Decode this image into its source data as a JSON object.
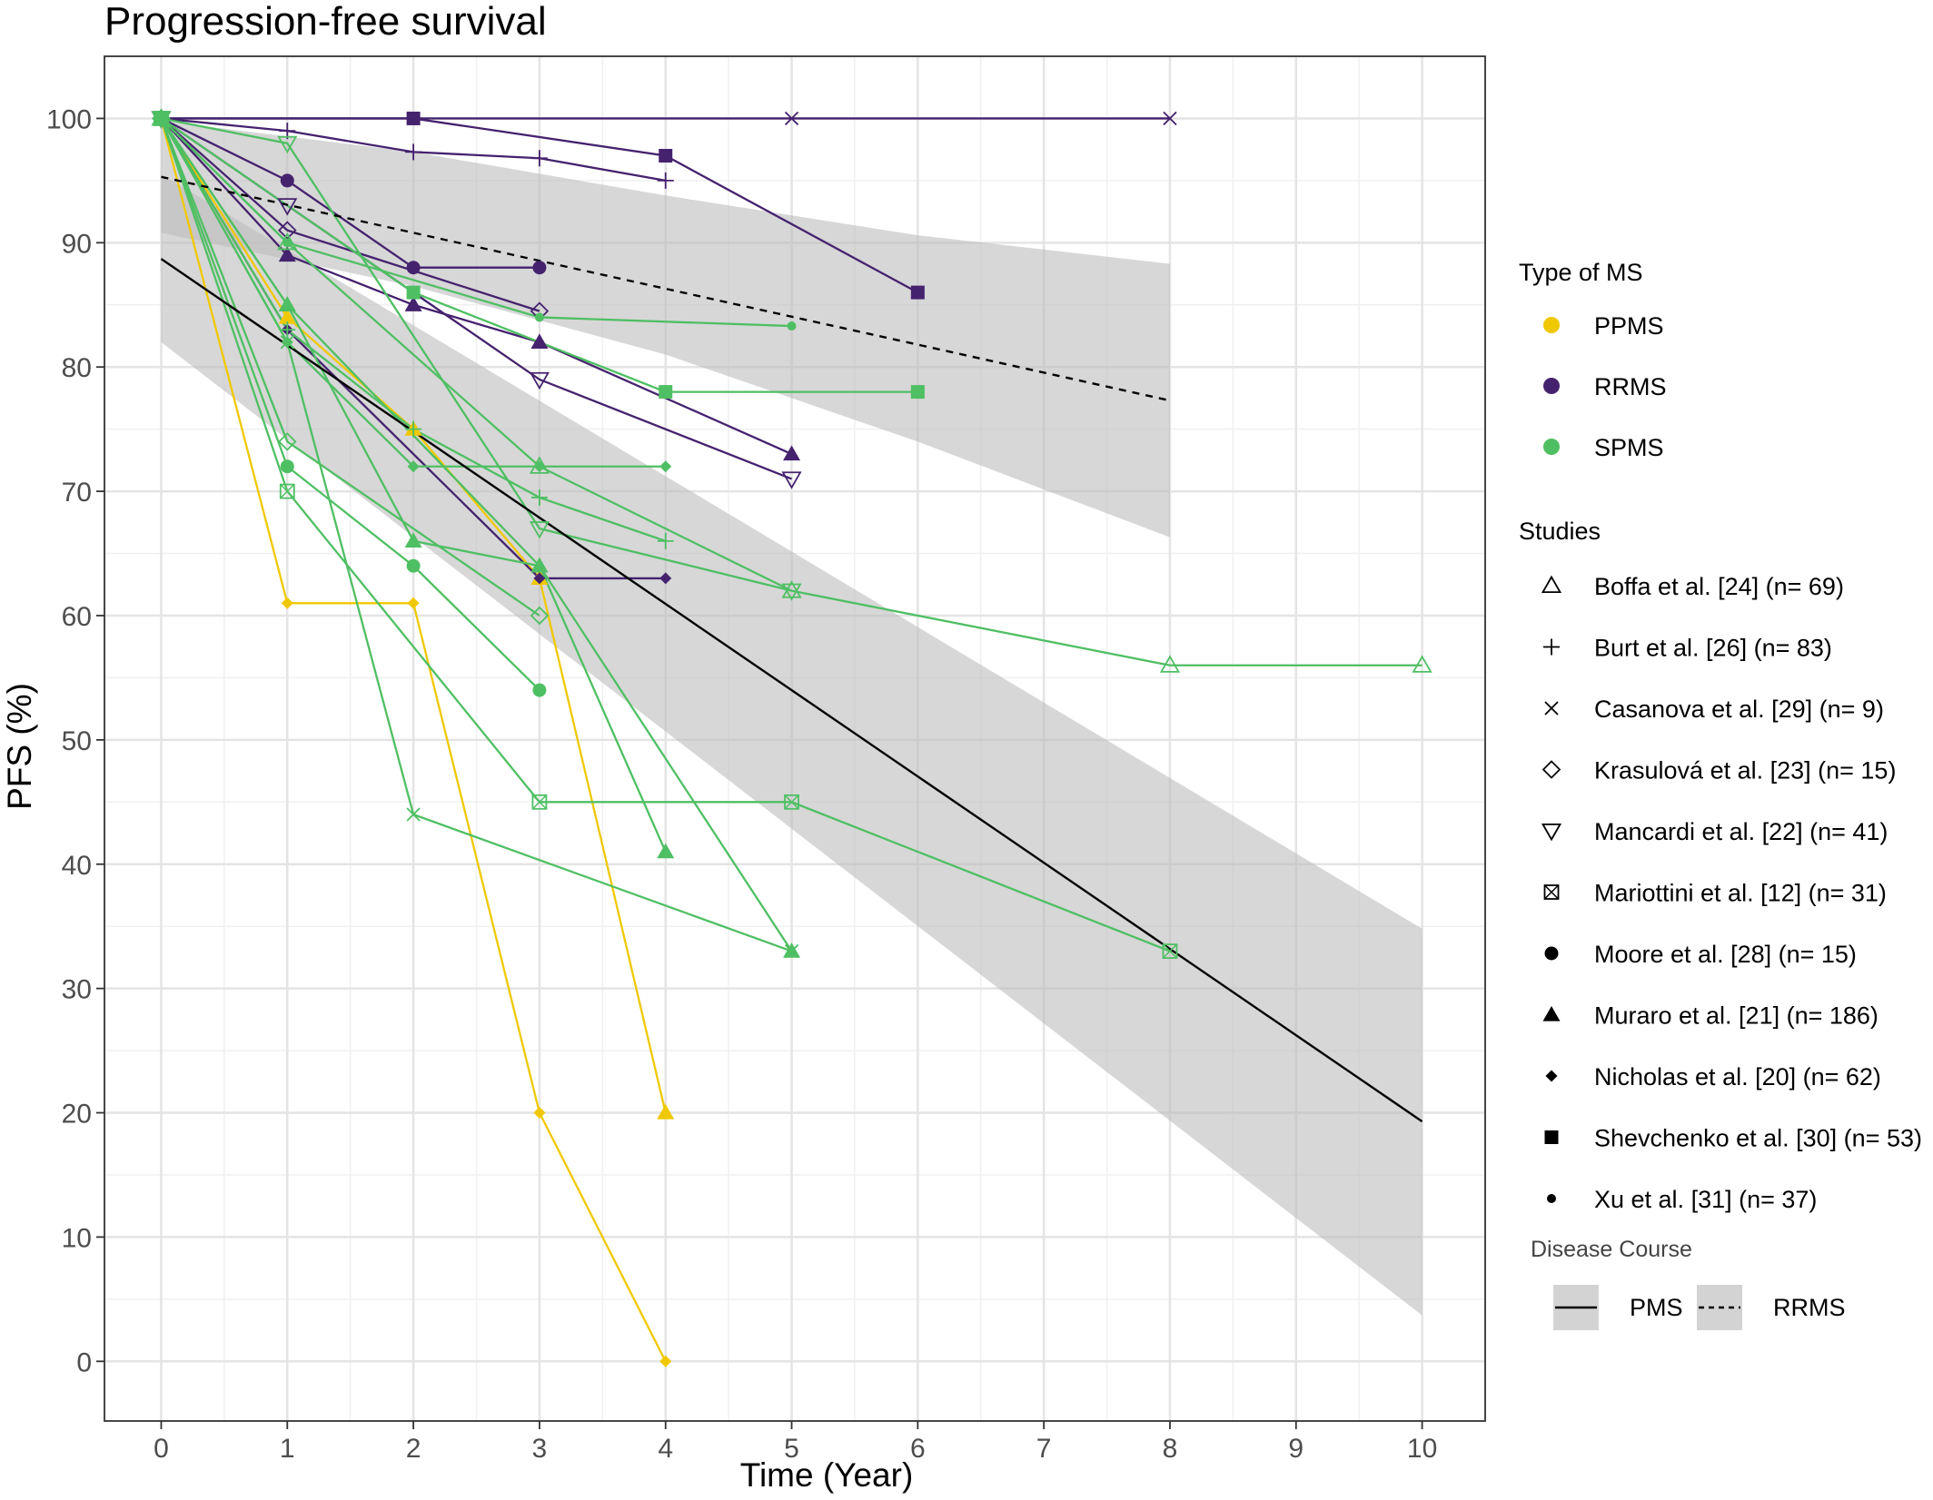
{
  "chart_data": {
    "type": "line",
    "title": "Progression-free survival",
    "xlabel": "Time (Year)",
    "ylabel": "PFS (%)",
    "xlim": [
      -0.45,
      10.5
    ],
    "ylim": [
      -4.8,
      105
    ],
    "x_ticks": [
      "0",
      "1",
      "2",
      "3",
      "4",
      "5",
      "6",
      "7",
      "8",
      "9",
      "10"
    ],
    "y_ticks": [
      "0",
      "10",
      "20",
      "30",
      "40",
      "50",
      "60",
      "70",
      "80",
      "90",
      "100"
    ],
    "grid": true,
    "colors": {
      "PPMS": "#f0c800",
      "RRMS": "#45226e",
      "SPMS": "#4fbf63"
    },
    "legend_type": {
      "title": "Type of MS",
      "items": [
        {
          "label": "PPMS",
          "key": "PPMS"
        },
        {
          "label": "RRMS",
          "key": "RRMS"
        },
        {
          "label": "SPMS",
          "key": "SPMS"
        }
      ]
    },
    "legend_studies": {
      "title": "Studies",
      "items": [
        {
          "name": "Boffa et al. [24]",
          "n": "(n= 69)",
          "shape": "triangle-open"
        },
        {
          "name": "Burt et al. [26]",
          "n": "(n= 83)",
          "shape": "plus"
        },
        {
          "name": "Casanova et al. [29]",
          "n": "(n= 9)",
          "shape": "cross"
        },
        {
          "name": "Krasulová et al. [23]",
          "n": "(n= 15)",
          "shape": "diamond-open"
        },
        {
          "name": "Mancardi et al. [22]",
          "n": "(n= 41)",
          "shape": "triangle-down-open"
        },
        {
          "name": "Mariottini et al. [12]",
          "n": "(n= 31)",
          "shape": "square-cross"
        },
        {
          "name": "Moore et al. [28]",
          "n": "(n= 15)",
          "shape": "circle"
        },
        {
          "name": "Muraro et al. [21]",
          "n": "(n= 186)",
          "shape": "triangle"
        },
        {
          "name": "Nicholas et al. [20]",
          "n": "(n= 62)",
          "shape": "diamond"
        },
        {
          "name": "Shevchenko et al. [30]",
          "n": "(n= 53)",
          "shape": "square"
        },
        {
          "name": "Xu et al. [31]",
          "n": "(n= 37)",
          "shape": "small-circle"
        }
      ]
    },
    "legend_course": {
      "title": "Disease Course",
      "items": [
        {
          "label": "PMS",
          "dash": "solid"
        },
        {
          "label": "RRMS",
          "dash": "dashed"
        }
      ]
    },
    "regression": [
      {
        "name": "PMS",
        "dash": "solid",
        "x": [
          0,
          10
        ],
        "y": [
          88.7,
          19.3
        ],
        "band_upper": [
          [
            0,
            95.5
          ],
          [
            10,
            34.8
          ]
        ],
        "band_lower": [
          [
            0,
            82.0
          ],
          [
            10,
            3.7
          ]
        ]
      },
      {
        "name": "RRMS",
        "dash": "dashed",
        "x": [
          0,
          8
        ],
        "y": [
          95.3,
          77.3
        ],
        "band_upper": [
          [
            0,
            99.8
          ],
          [
            2,
            97.3
          ],
          [
            4,
            93.8
          ],
          [
            6,
            90.6
          ],
          [
            8,
            88.3
          ]
        ],
        "band_lower": [
          [
            0,
            90.8
          ],
          [
            2,
            86.5
          ],
          [
            4,
            81.0
          ],
          [
            6,
            74.0
          ],
          [
            8,
            66.3
          ]
        ]
      }
    ],
    "series": [
      {
        "group": "PPMS",
        "shape": "diamond",
        "x": [
          0,
          1,
          2,
          3,
          4
        ],
        "y": [
          100,
          61,
          61,
          20,
          0
        ]
      },
      {
        "group": "PPMS",
        "shape": "triangle",
        "x": [
          0,
          1,
          2,
          3,
          4
        ],
        "y": [
          100,
          84,
          75,
          63,
          20
        ]
      },
      {
        "group": "RRMS",
        "shape": "cross",
        "x": [
          0,
          5,
          8
        ],
        "y": [
          100,
          100,
          100
        ]
      },
      {
        "group": "RRMS",
        "shape": "square",
        "x": [
          0,
          2,
          4,
          6
        ],
        "y": [
          100,
          100,
          97,
          86
        ]
      },
      {
        "group": "RRMS",
        "shape": "plus",
        "x": [
          0,
          1,
          2,
          3,
          4
        ],
        "y": [
          100,
          99,
          97.3,
          96.8,
          95
        ]
      },
      {
        "group": "RRMS",
        "shape": "circle",
        "x": [
          0,
          1,
          2,
          3
        ],
        "y": [
          100,
          95,
          88,
          88
        ]
      },
      {
        "group": "RRMS",
        "shape": "diamond-open",
        "x": [
          0,
          1,
          3
        ],
        "y": [
          100,
          91,
          84.5
        ]
      },
      {
        "group": "RRMS",
        "shape": "triangle",
        "x": [
          0,
          1,
          2,
          3,
          5
        ],
        "y": [
          100,
          89,
          85,
          82,
          73
        ]
      },
      {
        "group": "RRMS",
        "shape": "triangle-down-open",
        "x": [
          0,
          1,
          3,
          5
        ],
        "y": [
          100,
          93,
          79,
          71
        ]
      },
      {
        "group": "RRMS",
        "shape": "diamond",
        "x": [
          0,
          1,
          3,
          4
        ],
        "y": [
          100,
          83,
          63,
          63
        ]
      },
      {
        "group": "SPMS",
        "shape": "triangle-down-open",
        "x": [
          0,
          1,
          3,
          5
        ],
        "y": [
          100,
          98,
          67,
          62
        ]
      },
      {
        "group": "SPMS",
        "shape": "square",
        "x": [
          0,
          2,
          4,
          6
        ],
        "y": [
          100,
          86,
          78,
          78
        ]
      },
      {
        "group": "SPMS",
        "shape": "small-circle",
        "x": [
          0,
          1,
          3,
          5
        ],
        "y": [
          100,
          90,
          84,
          83.3
        ]
      },
      {
        "group": "SPMS",
        "shape": "triangle",
        "x": [
          0,
          1,
          3,
          4
        ],
        "y": [
          100,
          85,
          64,
          41
        ]
      },
      {
        "group": "SPMS",
        "shape": "plus",
        "x": [
          0,
          1,
          2,
          3,
          4
        ],
        "y": [
          100,
          83,
          75,
          69.5,
          66
        ]
      },
      {
        "group": "SPMS",
        "shape": "triangle-open",
        "x": [
          0,
          1,
          3,
          5,
          8,
          10
        ],
        "y": [
          100,
          90,
          72,
          62,
          56,
          56
        ]
      },
      {
        "group": "SPMS",
        "shape": "diamond",
        "x": [
          0,
          1,
          2,
          3,
          4
        ],
        "y": [
          100,
          82,
          72,
          72,
          72
        ]
      },
      {
        "group": "SPMS",
        "shape": "diamond-open",
        "x": [
          0,
          1,
          3
        ],
        "y": [
          100,
          74,
          60
        ]
      },
      {
        "group": "SPMS",
        "shape": "triangle",
        "x": [
          0,
          1,
          2,
          3,
          5
        ],
        "y": [
          100,
          85,
          66,
          64,
          33
        ]
      },
      {
        "group": "SPMS",
        "shape": "circle",
        "x": [
          0,
          1,
          2,
          3
        ],
        "y": [
          100,
          72,
          64,
          54
        ]
      },
      {
        "group": "SPMS",
        "shape": "square-cross",
        "x": [
          0,
          1,
          3,
          5,
          8
        ],
        "y": [
          100,
          70,
          45,
          45,
          33
        ]
      },
      {
        "group": "SPMS",
        "shape": "cross",
        "x": [
          0,
          1,
          2,
          5
        ],
        "y": [
          100,
          82,
          44,
          33
        ]
      }
    ]
  }
}
